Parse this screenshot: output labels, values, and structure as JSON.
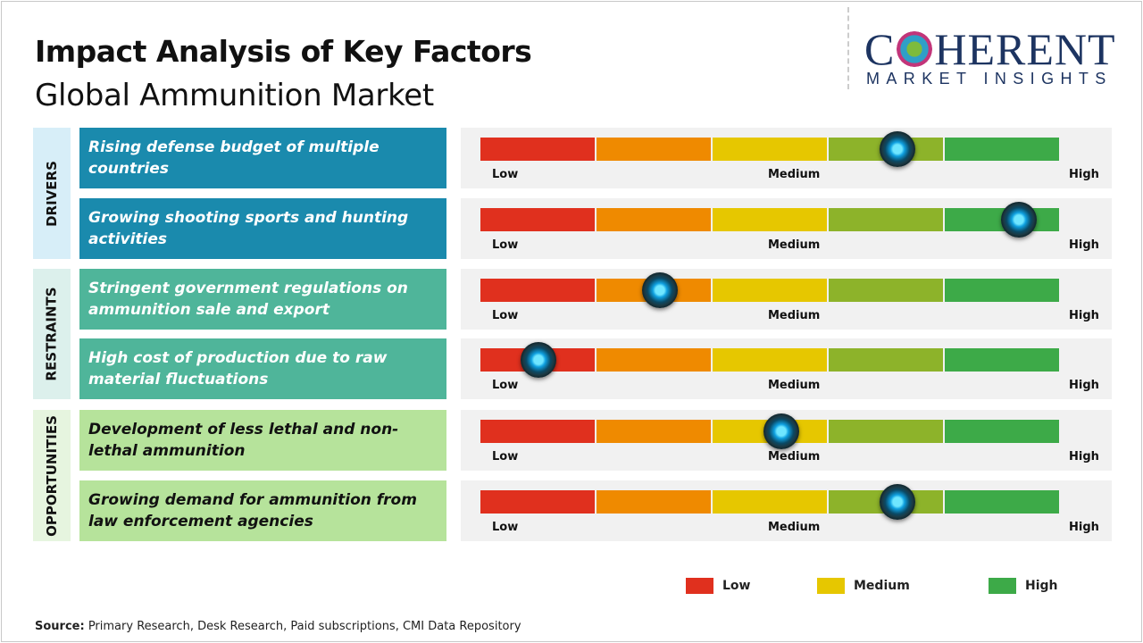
{
  "title": "Impact Analysis of Key Factors",
  "subtitle": "Global Ammunition Market",
  "logo": {
    "line1": "COHERENT",
    "line2": "MARKET INSIGHTS"
  },
  "chart_data": {
    "type": "gauge",
    "scale_labels": [
      "Low",
      "Medium",
      "High"
    ],
    "segment_colors": [
      "#e0301e",
      "#ef8a00",
      "#e6c700",
      "#8db32a",
      "#3daa48"
    ],
    "categories": [
      {
        "name": "DRIVERS",
        "bg": "#d7eef8",
        "box": "#1a8aad",
        "text": "#ffffff",
        "factors": [
          {
            "label": "Rising defense budget of multiple countries",
            "impact": 0.72
          },
          {
            "label": "Growing shooting sports and hunting activities",
            "impact": 0.93
          }
        ]
      },
      {
        "name": "RESTRAINTS",
        "bg": "#dcf0ec",
        "box": "#4fb59a",
        "text": "#ffffff",
        "factors": [
          {
            "label": "Stringent government regulations on ammunition sale and export",
            "impact": 0.31
          },
          {
            "label": "High cost of production due to raw material fluctuations",
            "impact": 0.1
          }
        ]
      },
      {
        "name": "OPPORTUNITIES",
        "bg": "#e6f5df",
        "box": "#b6e39b",
        "text": "#111111",
        "factors": [
          {
            "label": "Development of less lethal and non-lethal ammunition",
            "impact": 0.52
          },
          {
            "label": "Growing demand for ammunition from law enforcement agencies",
            "impact": 0.72
          }
        ]
      }
    ],
    "legend": [
      {
        "label": "Low",
        "color": "#e0301e"
      },
      {
        "label": "Medium",
        "color": "#e6c700"
      },
      {
        "label": "High",
        "color": "#3daa48"
      }
    ]
  },
  "source": {
    "label": "Source:",
    "text": " Primary Research, Desk Research, Paid subscriptions, CMI Data Repository"
  }
}
